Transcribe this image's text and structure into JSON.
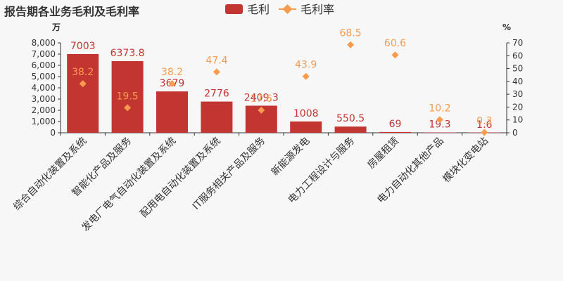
{
  "chart_data": {
    "type": "bar",
    "title": "报告期各业务毛利及毛利率",
    "categories": [
      "综合自动化装置及系统",
      "智能化产品及服务",
      "发电厂电气自动化装置及系统",
      "配用电自动化装置及系统",
      "IT服务相关产品及服务",
      "新能源发电",
      "电力工程设计与服务",
      "房屋租赁",
      "电力自动化其他产品",
      "模块化变电站"
    ],
    "series": [
      {
        "name": "毛利",
        "type": "bar",
        "axis": "left",
        "values": [
          7003,
          6373.8,
          3679,
          2776,
          2409.3,
          1008,
          550.5,
          69,
          19.3,
          1.6
        ],
        "labels": [
          "7003",
          "6373.8",
          "3679",
          "2776",
          "2409.3",
          "1008",
          "550.5",
          "69",
          "19.3",
          "1.6"
        ]
      },
      {
        "name": "毛利率",
        "type": "scatter",
        "marker": "diamond",
        "axis": "right",
        "values": [
          38.2,
          19.5,
          38.2,
          47.4,
          17.6,
          43.9,
          68.5,
          60.6,
          10.2,
          0.3
        ],
        "labels": [
          "38.2",
          "19.5",
          "38.2",
          "47.4",
          "17.6",
          "43.9",
          "68.5",
          "60.6",
          "10.2",
          "0.3"
        ]
      }
    ],
    "y_left": {
      "unit": "万",
      "min": 0,
      "max": 8000,
      "ticks": [
        0,
        1000,
        2000,
        3000,
        4000,
        5000,
        6000,
        7000,
        8000
      ],
      "tick_labels": [
        "0",
        "1,000",
        "2,000",
        "3,000",
        "4,000",
        "5,000",
        "6,000",
        "7,000",
        "8,000"
      ]
    },
    "y_right": {
      "unit": "%",
      "min": 0,
      "max": 70,
      "ticks": [
        0,
        10,
        20,
        30,
        40,
        50,
        60,
        70
      ],
      "tick_labels": [
        "0",
        "10",
        "20",
        "30",
        "40",
        "50",
        "60",
        "70"
      ]
    },
    "legend": {
      "position": "top",
      "items": [
        "毛利",
        "毛利率"
      ]
    },
    "grid": false
  },
  "colors": {
    "bar": "#c23531",
    "rate": "#f79b4f",
    "axis": "#333333",
    "background": "#f7f7f7"
  }
}
